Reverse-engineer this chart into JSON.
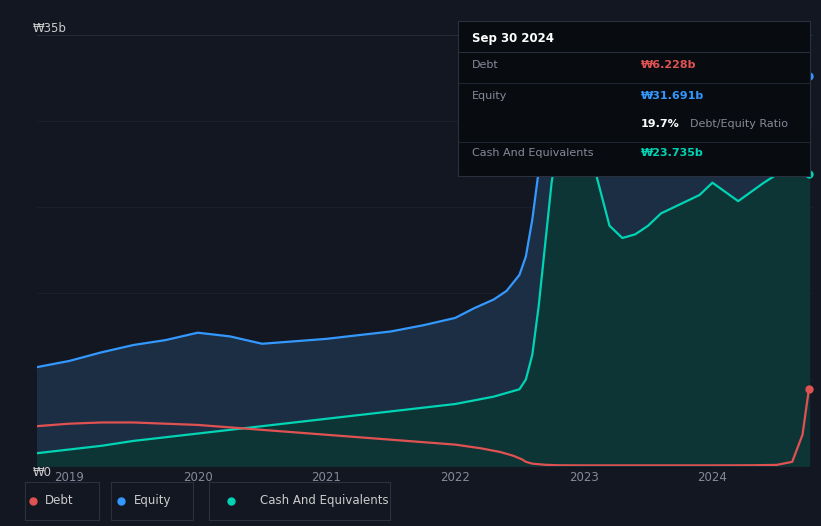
{
  "background_color": "#131722",
  "chart_bg": "#131722",
  "tooltip_bg": "#0a0a0a",
  "tooltip_border": "#2a2a3a",
  "ylabel_35b": "₩35b",
  "ylabel_0": "₩0",
  "x_ticks": [
    "2019",
    "2020",
    "2021",
    "2022",
    "2023",
    "2024"
  ],
  "tooltip": {
    "date": "Sep 30 2024",
    "debt_label": "Debt",
    "debt_value": "₩6.228b",
    "equity_label": "Equity",
    "equity_value": "₩31.691b",
    "ratio_value": "19.7%",
    "ratio_label": "Debt/Equity Ratio",
    "cash_label": "Cash And Equivalents",
    "cash_value": "₩23.735b"
  },
  "legend": {
    "debt_label": "Debt",
    "equity_label": "Equity",
    "cash_label": "Cash And Equivalents"
  },
  "colors": {
    "debt": "#e05252",
    "equity": "#3399ff",
    "cash": "#00d4b4",
    "equity_fill": "#1c2e44",
    "cash_fill": "#0d3535",
    "grid": "#2a3040"
  },
  "equity_x": [
    2018.75,
    2019.0,
    2019.25,
    2019.5,
    2019.75,
    2020.0,
    2020.25,
    2020.5,
    2020.75,
    2021.0,
    2021.25,
    2021.5,
    2021.75,
    2022.0,
    2022.15,
    2022.3,
    2022.4,
    2022.5,
    2022.55,
    2022.6,
    2022.65,
    2022.7,
    2022.75,
    2022.8,
    2022.9,
    2023.0,
    2023.1,
    2023.2,
    2023.3,
    2023.4,
    2023.5,
    2023.6,
    2023.7,
    2023.8,
    2023.9,
    2024.0,
    2024.2,
    2024.4,
    2024.55,
    2024.65,
    2024.75
  ],
  "equity_y": [
    8.0,
    8.5,
    9.2,
    9.8,
    10.2,
    10.8,
    10.5,
    9.9,
    10.1,
    10.3,
    10.6,
    10.9,
    11.4,
    12.0,
    12.8,
    13.5,
    14.2,
    15.5,
    17.0,
    20.0,
    24.0,
    28.0,
    31.5,
    33.5,
    34.2,
    34.0,
    33.5,
    32.8,
    32.2,
    31.8,
    31.5,
    31.8,
    31.3,
    32.0,
    32.3,
    32.5,
    31.2,
    31.6,
    32.0,
    31.9,
    31.691
  ],
  "cash_x": [
    2018.75,
    2019.0,
    2019.25,
    2019.5,
    2019.75,
    2020.0,
    2020.25,
    2020.5,
    2020.75,
    2021.0,
    2021.25,
    2021.5,
    2021.75,
    2022.0,
    2022.15,
    2022.3,
    2022.4,
    2022.5,
    2022.55,
    2022.6,
    2022.65,
    2022.7,
    2022.75,
    2022.8,
    2022.9,
    2023.0,
    2023.05,
    2023.1,
    2023.15,
    2023.2,
    2023.3,
    2023.4,
    2023.5,
    2023.6,
    2023.7,
    2023.8,
    2023.9,
    2024.0,
    2024.2,
    2024.4,
    2024.55,
    2024.65,
    2024.75
  ],
  "cash_y": [
    1.0,
    1.3,
    1.6,
    2.0,
    2.3,
    2.6,
    2.9,
    3.2,
    3.5,
    3.8,
    4.1,
    4.4,
    4.7,
    5.0,
    5.3,
    5.6,
    5.9,
    6.2,
    7.0,
    9.0,
    13.0,
    18.0,
    23.0,
    26.5,
    27.5,
    27.0,
    25.5,
    23.5,
    21.5,
    19.5,
    18.5,
    18.8,
    19.5,
    20.5,
    21.0,
    21.5,
    22.0,
    23.0,
    21.5,
    23.0,
    24.0,
    24.5,
    23.735
  ],
  "debt_x": [
    2018.75,
    2019.0,
    2019.25,
    2019.5,
    2019.75,
    2020.0,
    2020.25,
    2020.5,
    2020.75,
    2021.0,
    2021.25,
    2021.5,
    2021.75,
    2022.0,
    2022.2,
    2022.35,
    2022.45,
    2022.52,
    2022.55,
    2022.6,
    2022.7,
    2022.8,
    2023.0,
    2023.5,
    2024.0,
    2024.3,
    2024.5,
    2024.62,
    2024.7,
    2024.75
  ],
  "debt_y": [
    3.2,
    3.4,
    3.5,
    3.5,
    3.4,
    3.3,
    3.1,
    2.9,
    2.7,
    2.5,
    2.3,
    2.1,
    1.9,
    1.7,
    1.4,
    1.1,
    0.8,
    0.5,
    0.3,
    0.15,
    0.06,
    0.02,
    0.01,
    0.01,
    0.01,
    0.02,
    0.05,
    0.3,
    2.5,
    6.228
  ],
  "ylim": [
    0,
    37
  ],
  "xlim": [
    2018.75,
    2024.78
  ]
}
